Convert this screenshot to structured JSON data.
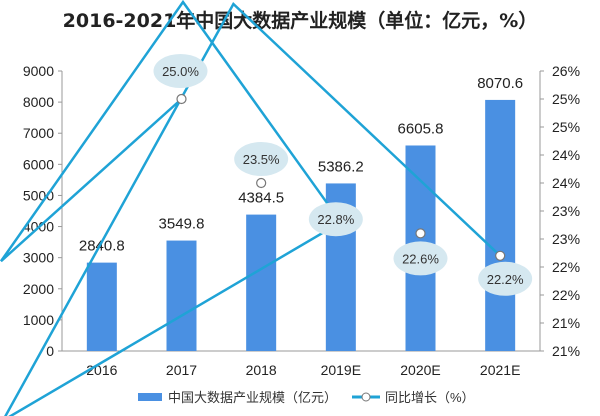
{
  "chart_data": {
    "type": "bar+line",
    "title": "2016-2021年中国大数据产业规模（单位：亿元，%）",
    "categories": [
      "2016",
      "2017",
      "2018",
      "2019E",
      "2020E",
      "2021E"
    ],
    "series": [
      {
        "name": "中国大数据产业规模（亿元）",
        "type": "bar",
        "axis": "left",
        "values": [
          2840.8,
          3549.8,
          4384.5,
          5386.2,
          6605.8,
          8070.6
        ],
        "labels": [
          "2840.8",
          "3549.8",
          "4384.5",
          "5386.2",
          "6605.8",
          "8070.6"
        ],
        "color": "#4a90e2"
      },
      {
        "name": "同比增长（%）",
        "type": "line",
        "axis": "right",
        "values": [
          null,
          25.0,
          23.5,
          22.8,
          22.6,
          22.2
        ],
        "labels": [
          "",
          "25.0%",
          "23.5%",
          "22.8%",
          "22.6%",
          "22.2%"
        ],
        "color": "#1fa3d6"
      }
    ],
    "left_axis": {
      "ylim": [
        0,
        9000
      ],
      "ticks": [
        "0",
        "1000",
        "2000",
        "3000",
        "4000",
        "5000",
        "6000",
        "7000",
        "8000",
        "9000"
      ]
    },
    "right_axis": {
      "ylim": [
        20.5,
        25.5
      ],
      "ticks": [
        "21%",
        "21%",
        "22%",
        "22%",
        "23%",
        "23%",
        "24%",
        "24%",
        "25%",
        "25%",
        "26%"
      ]
    },
    "legend_position": "bottom",
    "grid": false
  }
}
